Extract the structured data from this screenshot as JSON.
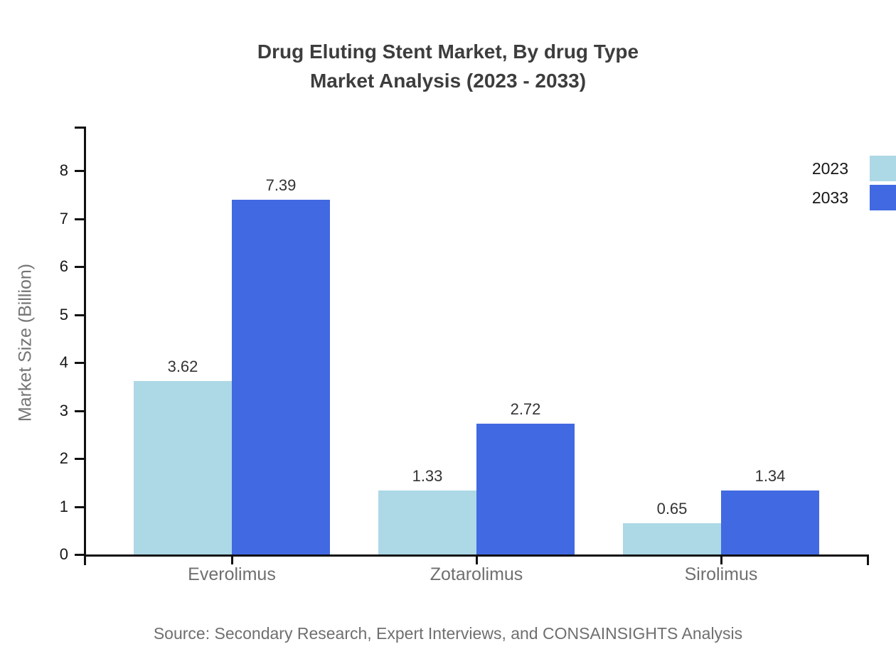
{
  "title": {
    "line1": "Drug Eluting Stent Market, By drug Type",
    "line2": "Market Analysis (2023 - 2033)"
  },
  "source_note": "Source: Secondary Research, Expert Interviews, and CONSAINSIGHTS Analysis",
  "chart_data": {
    "type": "bar",
    "title": "Drug Eluting Stent Market, By drug Type Market Analysis (2023 - 2033)",
    "categories": [
      "Everolimus",
      "Zotarolimus",
      "Sirolimus"
    ],
    "series": [
      {
        "name": "2023",
        "color": "#ADD8E6",
        "values": [
          3.62,
          1.33,
          0.65
        ]
      },
      {
        "name": "2033",
        "color": "#4169E1",
        "values": [
          7.39,
          2.72,
          1.34
        ]
      }
    ],
    "xlabel": "",
    "ylabel": "Market Size (Billion)",
    "ylim": [
      0,
      8.9
    ],
    "yticks": [
      0,
      1,
      2,
      3,
      4,
      5,
      6,
      7,
      8
    ],
    "grid": false,
    "legend_position": "top-right",
    "value_labels_shown": true,
    "axis_color": "#111111"
  }
}
